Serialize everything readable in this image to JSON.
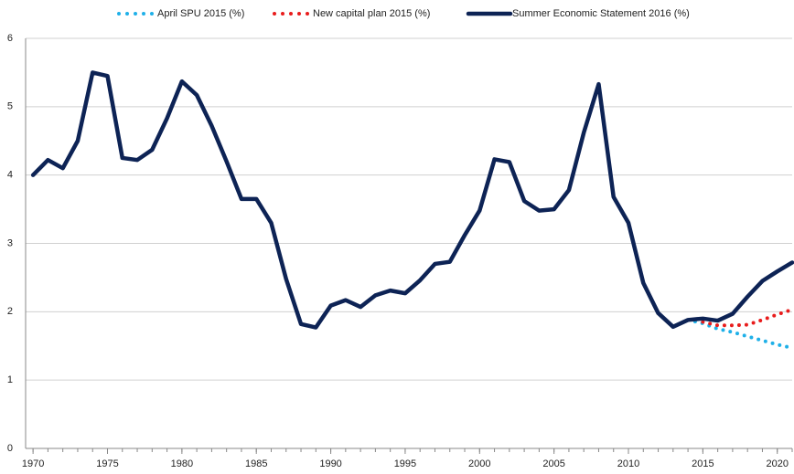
{
  "chart_data": {
    "type": "line",
    "x": [
      1970,
      1971,
      1972,
      1973,
      1974,
      1975,
      1976,
      1977,
      1978,
      1979,
      1980,
      1981,
      1982,
      1983,
      1984,
      1985,
      1986,
      1987,
      1988,
      1989,
      1990,
      1991,
      1992,
      1993,
      1994,
      1995,
      1996,
      1997,
      1998,
      1999,
      2000,
      2001,
      2002,
      2003,
      2004,
      2005,
      2006,
      2007,
      2008,
      2009,
      2010,
      2011,
      2012,
      2013,
      2014,
      2015,
      2016,
      2017,
      2018,
      2019,
      2020,
      2021
    ],
    "series": [
      {
        "name": "April SPU 2015 (%)",
        "color": "#1fb0e8",
        "style": "dotted",
        "values": [
          null,
          null,
          null,
          null,
          null,
          null,
          null,
          null,
          null,
          null,
          null,
          null,
          null,
          null,
          null,
          null,
          null,
          null,
          null,
          null,
          null,
          null,
          null,
          null,
          null,
          null,
          null,
          null,
          null,
          null,
          null,
          null,
          null,
          null,
          null,
          null,
          null,
          null,
          null,
          null,
          null,
          null,
          null,
          null,
          1.88,
          1.83,
          1.75,
          1.7,
          1.64,
          1.58,
          1.52,
          1.47
        ]
      },
      {
        "name": "New capital plan 2015 (%)",
        "color": "#e81c1c",
        "style": "dotted",
        "values": [
          null,
          null,
          null,
          null,
          null,
          null,
          null,
          null,
          null,
          null,
          null,
          null,
          null,
          null,
          null,
          null,
          null,
          null,
          null,
          null,
          null,
          null,
          null,
          null,
          null,
          null,
          null,
          null,
          null,
          null,
          null,
          null,
          null,
          null,
          null,
          null,
          null,
          null,
          null,
          null,
          null,
          null,
          null,
          null,
          null,
          1.85,
          1.8,
          1.8,
          1.81,
          1.88,
          1.96,
          2.03
        ]
      },
      {
        "name": "Summer Economic Statement 2016 (%)",
        "color": "#0d2355",
        "style": "solid",
        "values": [
          4.0,
          4.22,
          4.1,
          4.5,
          5.5,
          5.45,
          4.25,
          4.22,
          4.37,
          4.83,
          5.37,
          5.17,
          4.72,
          4.2,
          3.65,
          3.65,
          3.3,
          2.48,
          1.82,
          1.77,
          2.09,
          2.17,
          2.07,
          2.24,
          2.31,
          2.27,
          2.46,
          2.7,
          2.73,
          3.12,
          3.48,
          4.23,
          4.19,
          3.62,
          3.48,
          3.5,
          3.78,
          4.62,
          5.33,
          3.68,
          3.3,
          2.42,
          1.98,
          1.78,
          1.88,
          1.9,
          1.87,
          1.97,
          2.22,
          2.45,
          2.59,
          2.72
        ]
      }
    ],
    "xlim": [
      1969.5,
      2021
    ],
    "xticks": [
      1970,
      1975,
      1980,
      1985,
      1990,
      1995,
      2000,
      2005,
      2010,
      2015,
      2020
    ],
    "ylim": [
      0,
      6
    ],
    "yticks": [
      0,
      1,
      2,
      3,
      4,
      5,
      6
    ],
    "grid": true,
    "legend": "top"
  }
}
